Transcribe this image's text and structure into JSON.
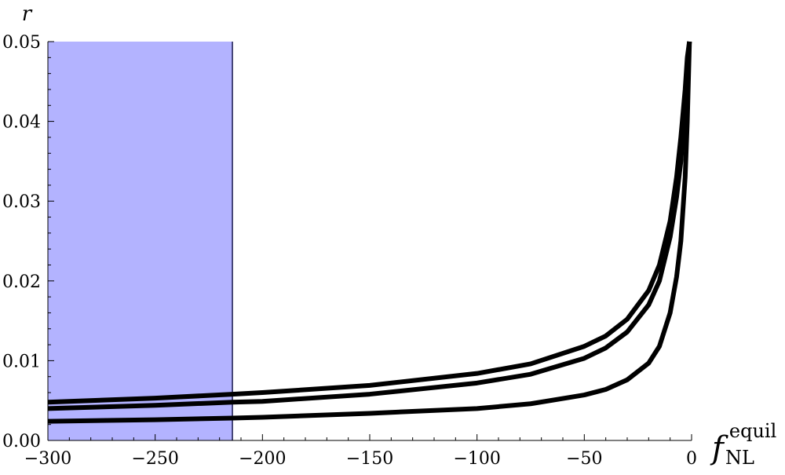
{
  "chart_data": {
    "type": "line",
    "title": "",
    "ylabel": "r",
    "xlabel": {
      "base": "f",
      "superscript": "equil",
      "subscript": "NL"
    },
    "xlim": [
      -300,
      0
    ],
    "ylim": [
      0,
      0.05
    ],
    "x_ticks": [
      -300,
      -250,
      -200,
      -150,
      -100,
      -50,
      0
    ],
    "x_tick_labels": [
      "−300",
      "−250",
      "−200",
      "−150",
      "−100",
      "−50",
      "0"
    ],
    "y_ticks": [
      0,
      0.01,
      0.02,
      0.03,
      0.04,
      0.05
    ],
    "y_tick_labels": [
      "0.00",
      "0.01",
      "0.02",
      "0.03",
      "0.04",
      "0.05"
    ],
    "grid": false,
    "legend": "none",
    "shaded_region": {
      "x_from": -300,
      "x_to": -214,
      "color": "#b3b3ff",
      "edge_color": "#1a1a4d"
    },
    "line_color": "#000000",
    "series": [
      {
        "x": [
          -300,
          -250,
          -214,
          -200,
          -150,
          -100,
          -75,
          -50,
          -40,
          -30,
          -20,
          -15,
          -10,
          -7,
          -5,
          -3,
          -2,
          -1
        ],
        "values": [
          0.0048,
          0.0053,
          0.0058,
          0.006,
          0.0069,
          0.0084,
          0.0096,
          0.0118,
          0.0131,
          0.0152,
          0.0188,
          0.022,
          0.0275,
          0.033,
          0.038,
          0.044,
          0.048,
          0.05
        ]
      },
      {
        "x": [
          -300,
          -250,
          -214,
          -200,
          -150,
          -100,
          -75,
          -50,
          -40,
          -30,
          -20,
          -15,
          -10,
          -7,
          -5,
          -3,
          -2,
          -1
        ],
        "values": [
          0.004,
          0.0044,
          0.0048,
          0.0049,
          0.0058,
          0.0072,
          0.0083,
          0.0103,
          0.0116,
          0.0136,
          0.017,
          0.02,
          0.0255,
          0.0305,
          0.035,
          0.042,
          0.0465,
          0.05
        ]
      },
      {
        "x": [
          -300,
          -250,
          -214,
          -200,
          -150,
          -100,
          -75,
          -50,
          -40,
          -30,
          -20,
          -15,
          -10,
          -7,
          -5,
          -3,
          -2,
          -1
        ],
        "values": [
          0.0024,
          0.0026,
          0.0028,
          0.0029,
          0.0034,
          0.004,
          0.0046,
          0.0057,
          0.0064,
          0.0076,
          0.0097,
          0.0118,
          0.016,
          0.0205,
          0.025,
          0.033,
          0.04,
          0.05
        ]
      }
    ]
  }
}
